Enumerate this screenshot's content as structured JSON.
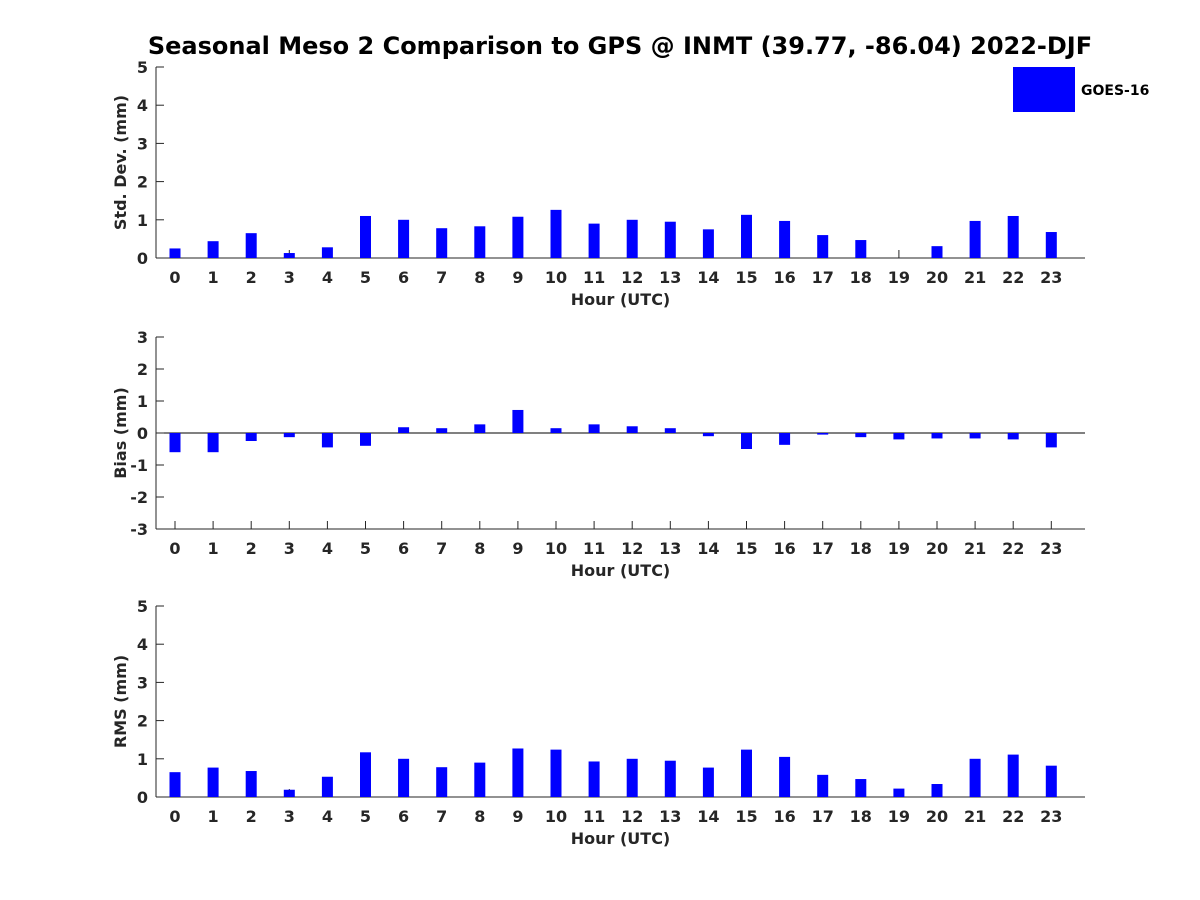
{
  "title": "Seasonal Meso 2 Comparison to GPS @ INMT (39.77, -86.04) 2022-DJF",
  "legend": {
    "label": "GOES-16",
    "color": "#0000ff",
    "placement": "top-right"
  },
  "chart_data": [
    {
      "type": "bar",
      "xlabel": "Hour (UTC)",
      "ylabel": "Std. Dev. (mm)",
      "ylim": [
        0,
        5
      ],
      "yticks": [
        0,
        1,
        2,
        3,
        4,
        5
      ],
      "categories": [
        "0",
        "1",
        "2",
        "3",
        "4",
        "5",
        "6",
        "7",
        "8",
        "9",
        "10",
        "11",
        "12",
        "13",
        "14",
        "15",
        "16",
        "17",
        "18",
        "19",
        "20",
        "21",
        "22",
        "23"
      ],
      "series": [
        {
          "name": "GOES-16",
          "color": "#0000ff",
          "values": [
            0.25,
            0.44,
            0.65,
            0.13,
            0.28,
            1.1,
            1.0,
            0.78,
            0.83,
            1.08,
            1.26,
            0.9,
            1.0,
            0.95,
            0.75,
            1.13,
            0.97,
            0.6,
            0.47,
            0.0,
            0.31,
            0.97,
            1.1,
            0.68
          ]
        }
      ]
    },
    {
      "type": "bar",
      "xlabel": "Hour (UTC)",
      "ylabel": "Bias (mm)",
      "ylim": [
        -3,
        3
      ],
      "yticks": [
        -3,
        -2,
        -1,
        0,
        1,
        2,
        3
      ],
      "categories": [
        "0",
        "1",
        "2",
        "3",
        "4",
        "5",
        "6",
        "7",
        "8",
        "9",
        "10",
        "11",
        "12",
        "13",
        "14",
        "15",
        "16",
        "17",
        "18",
        "19",
        "20",
        "21",
        "22",
        "23"
      ],
      "series": [
        {
          "name": "GOES-16",
          "color": "#0000ff",
          "values": [
            -0.6,
            -0.6,
            -0.25,
            -0.13,
            -0.45,
            -0.4,
            0.18,
            0.15,
            0.27,
            0.72,
            0.15,
            0.27,
            0.21,
            0.15,
            -0.1,
            -0.5,
            -0.37,
            -0.05,
            -0.13,
            -0.2,
            -0.17,
            -0.17,
            -0.2,
            -0.45
          ]
        }
      ]
    },
    {
      "type": "bar",
      "xlabel": "Hour (UTC)",
      "ylabel": "RMS (mm)",
      "ylim": [
        0,
        5
      ],
      "yticks": [
        0,
        1,
        2,
        3,
        4,
        5
      ],
      "categories": [
        "0",
        "1",
        "2",
        "3",
        "4",
        "5",
        "6",
        "7",
        "8",
        "9",
        "10",
        "11",
        "12",
        "13",
        "14",
        "15",
        "16",
        "17",
        "18",
        "19",
        "20",
        "21",
        "22",
        "23"
      ],
      "series": [
        {
          "name": "GOES-16",
          "color": "#0000ff",
          "values": [
            0.65,
            0.77,
            0.68,
            0.19,
            0.53,
            1.17,
            1.0,
            0.78,
            0.9,
            1.27,
            1.24,
            0.93,
            1.0,
            0.95,
            0.77,
            1.24,
            1.05,
            0.58,
            0.47,
            0.22,
            0.34,
            1.0,
            1.11,
            0.82
          ]
        }
      ]
    }
  ]
}
